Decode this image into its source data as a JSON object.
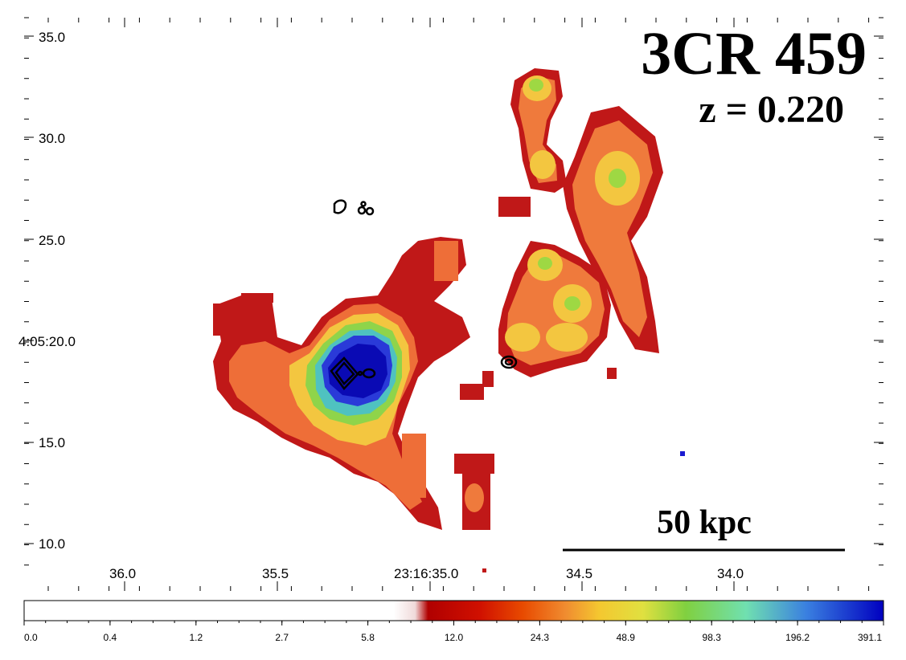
{
  "figure": {
    "title": "3CR 459",
    "redshift_label": "z = 0.220",
    "scalebar_label": "50 kpc"
  },
  "axes": {
    "x_ticks": [
      "36.0",
      "35.5",
      "23:16:35.0",
      "34.5",
      "34.0"
    ],
    "y_ticks": [
      "35.0",
      "30.0",
      "25.0",
      "4:05:20.0",
      "15.0",
      "10.0"
    ]
  },
  "colorbar": {
    "labels": [
      "0.0",
      "0.4",
      "1.2",
      "2.7",
      "5.8",
      "12.0",
      "24.3",
      "48.9",
      "98.3",
      "196.2",
      "391.1"
    ],
    "colors": [
      "#ffffff",
      "#ffffff",
      "#ffffff",
      "#ffffff",
      "#ffffff",
      "#f2e0e0",
      "#a00000",
      "#cc1000",
      "#e84000",
      "#f08030",
      "#f6c030",
      "#e0e040",
      "#80d040",
      "#70e0b0",
      "#3070e0",
      "#0000c0"
    ]
  },
  "image_colors": {
    "low": "#c01818",
    "mid": "#f07840",
    "high": "#f6cc4a",
    "green": "#9ed843",
    "cyan": "#53c8b8",
    "blue": "#2030d8",
    "core": "#0a0ab8"
  }
}
